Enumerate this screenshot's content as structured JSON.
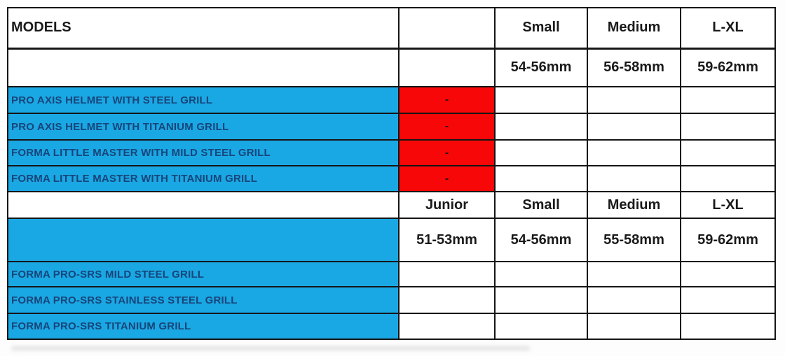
{
  "colors": {
    "table_blue": "#1AA8E4",
    "table_red": "#F70707",
    "model_text_navy": "#17457A",
    "header_text": "#1a1a1a",
    "grid_border": "#151515"
  },
  "chart_data": {
    "type": "table",
    "title": "Helmet models size chart",
    "columns": [
      "MODELS",
      "",
      "Small",
      "Medium",
      "L-XL"
    ],
    "rows": [
      {
        "cells": [
          {
            "t": "MODELS",
            "bg": "w",
            "name": "models-header-cell"
          },
          {
            "t": "",
            "bg": "w",
            "name": "empty-cell"
          },
          {
            "t": "Small",
            "bg": "w",
            "name": "size-label-cell"
          },
          {
            "t": "Medium",
            "bg": "w",
            "name": "size-label-cell"
          },
          {
            "t": "L-XL",
            "bg": "w",
            "name": "size-label-cell"
          }
        ]
      },
      {
        "cells": [
          {
            "t": "",
            "bg": "w",
            "name": "empty-cell"
          },
          {
            "t": "",
            "bg": "w",
            "name": "empty-cell"
          },
          {
            "t": "54-56mm",
            "bg": "w",
            "name": "size-range-cell"
          },
          {
            "t": "56-58mm",
            "bg": "w",
            "name": "size-range-cell"
          },
          {
            "t": "59-62mm",
            "bg": "w",
            "name": "size-range-cell"
          }
        ]
      },
      {
        "cells": [
          {
            "t": "PRO AXIS HELMET WITH STEEL GRILL",
            "bg": "b",
            "name": "model-name-cell"
          },
          {
            "t": "-",
            "bg": "r",
            "name": "unavailable-marker-cell"
          },
          {
            "t": "",
            "bg": "w",
            "name": "empty-cell"
          },
          {
            "t": "",
            "bg": "w",
            "name": "empty-cell"
          },
          {
            "t": "",
            "bg": "w",
            "name": "empty-cell"
          }
        ]
      },
      {
        "cells": [
          {
            "t": "PRO AXIS HELMET WITH TITANIUM GRILL",
            "bg": "b",
            "name": "model-name-cell"
          },
          {
            "t": "-",
            "bg": "r",
            "name": "unavailable-marker-cell"
          },
          {
            "t": "",
            "bg": "w",
            "name": "empty-cell"
          },
          {
            "t": "",
            "bg": "w",
            "name": "empty-cell"
          },
          {
            "t": "",
            "bg": "w",
            "name": "empty-cell"
          }
        ]
      },
      {
        "cells": [
          {
            "t": "FORMA LITTLE MASTER WITH MILD STEEL GRILL",
            "bg": "b",
            "name": "model-name-cell"
          },
          {
            "t": "-",
            "bg": "r",
            "name": "unavailable-marker-cell"
          },
          {
            "t": "",
            "bg": "w",
            "name": "empty-cell"
          },
          {
            "t": "",
            "bg": "w",
            "name": "empty-cell"
          },
          {
            "t": "",
            "bg": "w",
            "name": "empty-cell"
          }
        ]
      },
      {
        "cells": [
          {
            "t": "FORMA LITTLE MASTER WITH TITANIUM GRILL",
            "bg": "b",
            "name": "model-name-cell"
          },
          {
            "t": "-",
            "bg": "r",
            "name": "unavailable-marker-cell"
          },
          {
            "t": "",
            "bg": "w",
            "name": "empty-cell"
          },
          {
            "t": "",
            "bg": "w",
            "name": "empty-cell"
          },
          {
            "t": "",
            "bg": "w",
            "name": "empty-cell"
          }
        ]
      },
      {
        "cells": [
          {
            "t": "",
            "bg": "w",
            "name": "empty-cell"
          },
          {
            "t": "Junior",
            "bg": "w",
            "name": "size-label-cell"
          },
          {
            "t": "Small",
            "bg": "w",
            "name": "size-label-cell"
          },
          {
            "t": "Medium",
            "bg": "w",
            "name": "size-label-cell"
          },
          {
            "t": "L-XL",
            "bg": "w",
            "name": "size-label-cell"
          }
        ]
      },
      {
        "cells": [
          {
            "t": "",
            "bg": "b",
            "name": "empty-cell"
          },
          {
            "t": "51-53mm",
            "bg": "w",
            "name": "size-range-cell"
          },
          {
            "t": "54-56mm",
            "bg": "w",
            "name": "size-range-cell"
          },
          {
            "t": "55-58mm",
            "bg": "w",
            "name": "size-range-cell"
          },
          {
            "t": "59-62mm",
            "bg": "w",
            "name": "size-range-cell"
          }
        ]
      },
      {
        "cells": [
          {
            "t": "FORMA PRO-SRS MILD STEEL GRILL",
            "bg": "b",
            "name": "model-name-cell"
          },
          {
            "t": "",
            "bg": "w",
            "name": "empty-cell"
          },
          {
            "t": "",
            "bg": "w",
            "name": "empty-cell"
          },
          {
            "t": "",
            "bg": "w",
            "name": "empty-cell"
          },
          {
            "t": "",
            "bg": "w",
            "name": "empty-cell"
          }
        ]
      },
      {
        "cells": [
          {
            "t": "FORMA PRO-SRS STAINLESS STEEL GRILL",
            "bg": "b",
            "name": "model-name-cell"
          },
          {
            "t": "",
            "bg": "w",
            "name": "empty-cell"
          },
          {
            "t": "",
            "bg": "w",
            "name": "empty-cell"
          },
          {
            "t": "",
            "bg": "w",
            "name": "empty-cell"
          },
          {
            "t": "",
            "bg": "w",
            "name": "empty-cell"
          }
        ]
      },
      {
        "cells": [
          {
            "t": "FORMA PRO-SRS TITANIUM GRILL",
            "bg": "b",
            "name": "model-name-cell"
          },
          {
            "t": "",
            "bg": "w",
            "name": "empty-cell"
          },
          {
            "t": "",
            "bg": "w",
            "name": "empty-cell"
          },
          {
            "t": "",
            "bg": "w",
            "name": "empty-cell"
          },
          {
            "t": "",
            "bg": "w",
            "name": "empty-cell"
          }
        ]
      }
    ]
  }
}
